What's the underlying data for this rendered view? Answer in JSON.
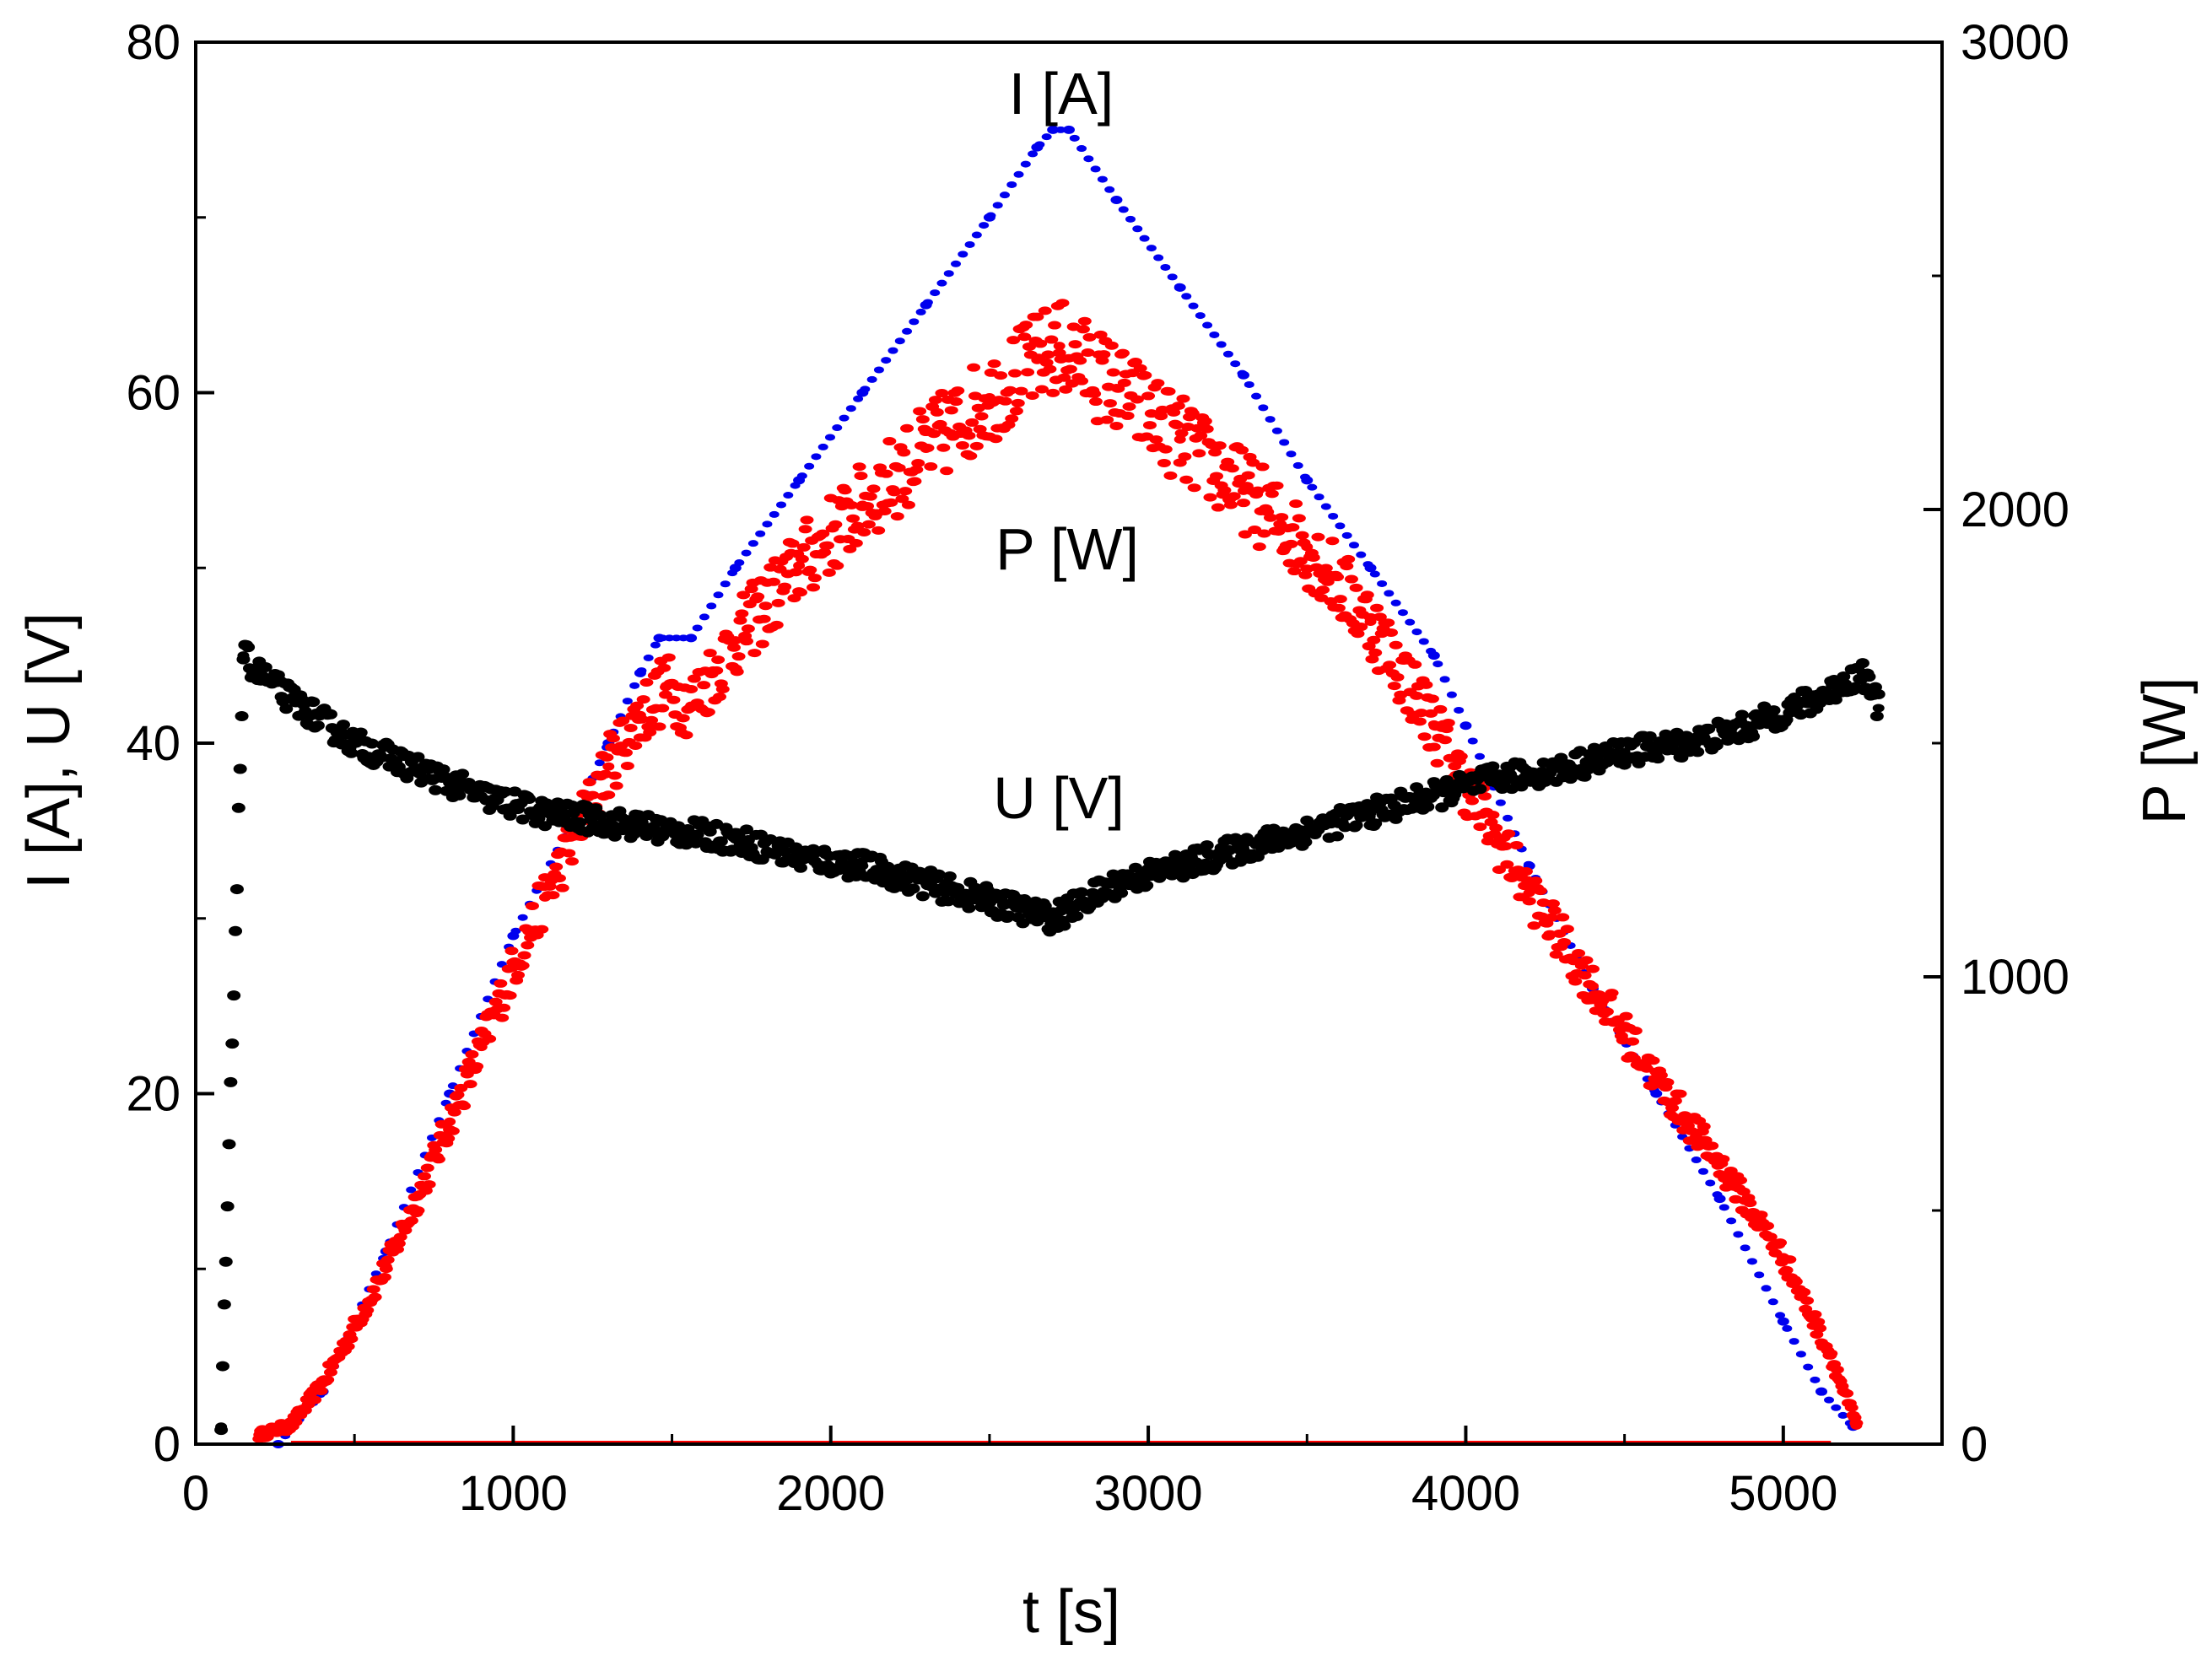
{
  "chart_data": {
    "type": "scatter",
    "x_axis": {
      "label": "t [s]",
      "range": [
        0,
        5500
      ],
      "ticks": [
        0,
        1000,
        2000,
        3000,
        4000,
        5000
      ],
      "tick_labels": [
        "0",
        "1000",
        "2000",
        "3000",
        "4000",
        "5000"
      ]
    },
    "y_left": {
      "label": "I [A], U [V]",
      "range": [
        0,
        80
      ],
      "ticks": [
        0,
        20,
        40,
        60,
        80
      ],
      "tick_labels": [
        "0",
        "20",
        "40",
        "60",
        "80"
      ]
    },
    "y_right": {
      "label": "P [W]",
      "range": [
        0,
        3000
      ],
      "ticks": [
        0,
        1000,
        2000,
        3000
      ],
      "tick_labels": [
        "0",
        "1000",
        "2000",
        "3000"
      ]
    },
    "series": [
      {
        "name": "I [A]",
        "axis": "left",
        "color": "#0000ee",
        "points": [
          [
            260,
            0
          ],
          [
            400,
            3
          ],
          [
            600,
            11
          ],
          [
            800,
            20
          ],
          [
            1000,
            29
          ],
          [
            1200,
            36
          ],
          [
            1300,
            40
          ],
          [
            1400,
            44
          ],
          [
            1460,
            46
          ],
          [
            1560,
            46
          ],
          [
            1700,
            50
          ],
          [
            1900,
            55
          ],
          [
            2100,
            60
          ],
          [
            2300,
            65
          ],
          [
            2500,
            70
          ],
          [
            2650,
            74
          ],
          [
            2700,
            75
          ],
          [
            2750,
            75
          ],
          [
            2900,
            71
          ],
          [
            3100,
            66
          ],
          [
            3300,
            61
          ],
          [
            3500,
            55
          ],
          [
            3700,
            50
          ],
          [
            3900,
            45
          ],
          [
            4000,
            41
          ],
          [
            4200,
            33
          ],
          [
            4400,
            26
          ],
          [
            4600,
            20
          ],
          [
            4800,
            14
          ],
          [
            5000,
            7
          ],
          [
            5120,
            3
          ],
          [
            5220,
            1
          ]
        ]
      },
      {
        "name": "P [W]",
        "axis": "right",
        "color": "#ff0000",
        "points": [
          [
            200,
            20
          ],
          [
            300,
            40
          ],
          [
            400,
            130
          ],
          [
            500,
            250
          ],
          [
            600,
            380
          ],
          [
            700,
            530
          ],
          [
            800,
            690
          ],
          [
            900,
            850
          ],
          [
            1000,
            1020
          ],
          [
            1100,
            1170
          ],
          [
            1200,
            1310
          ],
          [
            1300,
            1450
          ],
          [
            1400,
            1560
          ],
          [
            1480,
            1620
          ],
          [
            1560,
            1580
          ],
          [
            1700,
            1720
          ],
          [
            1900,
            1880
          ],
          [
            2100,
            2010
          ],
          [
            2300,
            2130
          ],
          [
            2500,
            2240
          ],
          [
            2650,
            2320
          ],
          [
            2720,
            2350
          ],
          [
            2900,
            2260
          ],
          [
            3100,
            2150
          ],
          [
            3300,
            2040
          ],
          [
            3500,
            1920
          ],
          [
            3700,
            1760
          ],
          [
            3900,
            1540
          ],
          [
            4000,
            1410
          ],
          [
            4200,
            1180
          ],
          [
            4400,
            980
          ],
          [
            4600,
            780
          ],
          [
            4800,
            600
          ],
          [
            5000,
            400
          ],
          [
            5150,
            190
          ],
          [
            5230,
            40
          ]
        ]
      },
      {
        "name": "U [V]",
        "axis": "left",
        "color": "#000000",
        "points": [
          [
            80,
            1
          ],
          [
            150,
            45
          ],
          [
            200,
            44
          ],
          [
            300,
            42.5
          ],
          [
            500,
            40
          ],
          [
            700,
            38.5
          ],
          [
            900,
            37
          ],
          [
            1100,
            36
          ],
          [
            1300,
            35.5
          ],
          [
            1500,
            35
          ],
          [
            1700,
            34.5
          ],
          [
            1900,
            33.5
          ],
          [
            2100,
            33
          ],
          [
            2300,
            32
          ],
          [
            2500,
            31
          ],
          [
            2700,
            30
          ],
          [
            2900,
            32
          ],
          [
            3100,
            33
          ],
          [
            3300,
            34
          ],
          [
            3500,
            35
          ],
          [
            3700,
            36
          ],
          [
            3900,
            37
          ],
          [
            4100,
            38
          ],
          [
            4300,
            38.5
          ],
          [
            4500,
            39.5
          ],
          [
            4700,
            40
          ],
          [
            4900,
            41
          ],
          [
            5100,
            42.5
          ],
          [
            5250,
            44
          ],
          [
            5300,
            42
          ]
        ]
      }
    ],
    "annotations": [
      "I [A]",
      "P [W]",
      "U [V]"
    ]
  }
}
